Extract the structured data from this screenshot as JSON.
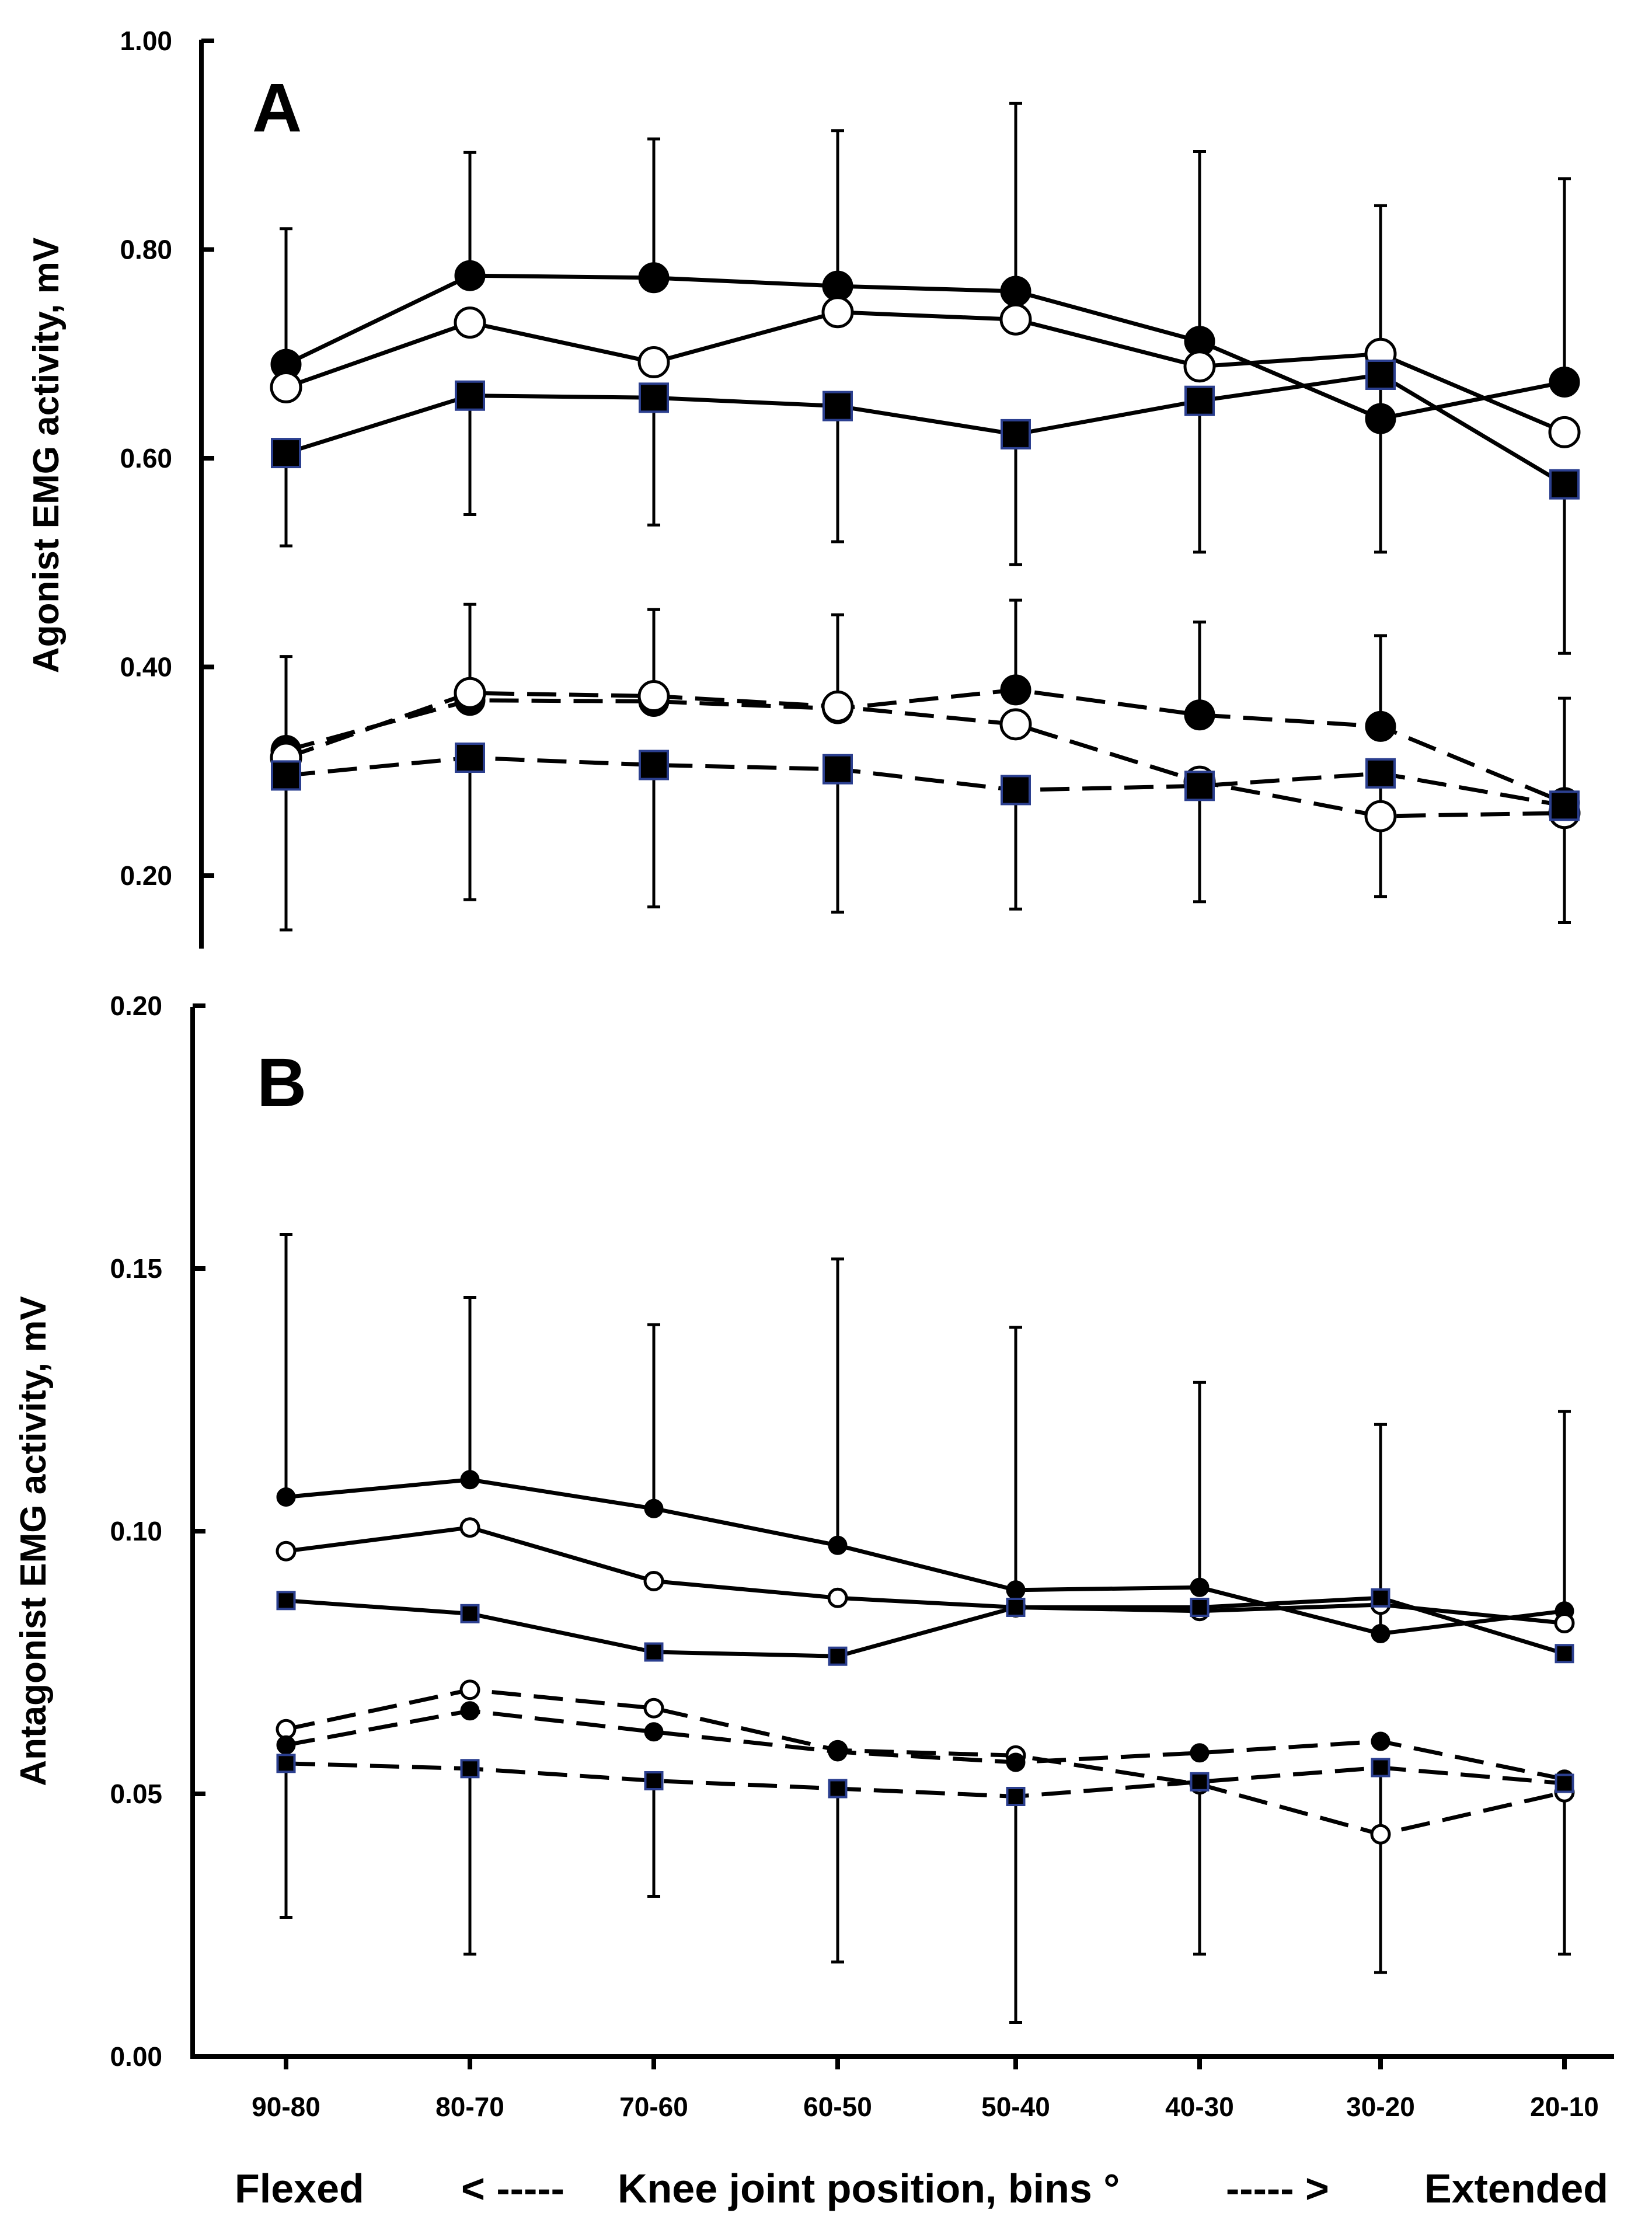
{
  "chart_data": [
    {
      "panel": "A",
      "type": "line",
      "ylabel": "Agonist EMG activity, mV",
      "ylim": [
        0.15,
        1.0
      ],
      "yticks": [
        "1.00",
        "0.80",
        "0.60",
        "0.40",
        "0.20"
      ],
      "categories": [
        "90-80",
        "80-70",
        "70-60",
        "60-50",
        "50-40",
        "40-30",
        "30-20",
        "20-10"
      ],
      "series": [
        {
          "name": "filled-circle-solid",
          "marker": "circle-filled",
          "dash": false,
          "values": [
            0.69,
            0.775,
            0.773,
            0.765,
            0.76,
            0.712,
            0.638,
            0.673
          ],
          "err": [
            0.82,
            0.893,
            0.906,
            0.914,
            0.94,
            0.894,
            0.842,
            0.868
          ]
        },
        {
          "name": "open-circle-solid",
          "marker": "circle-open",
          "dash": false,
          "values": [
            0.668,
            0.73,
            0.692,
            0.74,
            0.733,
            0.688,
            0.7,
            0.625
          ],
          "err": null
        },
        {
          "name": "filled-square-solid",
          "marker": "square-filled",
          "dash": false,
          "values": [
            0.605,
            0.66,
            0.658,
            0.65,
            0.623,
            0.655,
            0.68,
            0.575
          ],
          "err": [
            0.516,
            0.546,
            0.536,
            0.52,
            0.498,
            0.51,
            0.51,
            0.413
          ]
        },
        {
          "name": "filled-circle-dashed",
          "marker": "circle-filled",
          "dash": true,
          "values": [
            0.32,
            0.368,
            0.367,
            0.36,
            0.378,
            0.354,
            0.343,
            0.27
          ],
          "err": [
            0.41,
            0.46,
            0.455,
            0.45,
            0.464,
            0.443,
            0.43,
            0.37
          ]
        },
        {
          "name": "open-circle-dashed",
          "marker": "circle-open",
          "dash": true,
          "values": [
            0.313,
            0.375,
            0.372,
            0.362,
            0.345,
            0.29,
            0.257,
            0.26
          ],
          "err": null
        },
        {
          "name": "filled-square-dashed",
          "marker": "square-filled",
          "dash": true,
          "values": [
            0.296,
            0.313,
            0.306,
            0.302,
            0.282,
            0.286,
            0.298,
            0.267
          ],
          "err": [
            0.148,
            0.177,
            0.17,
            0.165,
            0.168,
            0.175,
            0.18,
            0.155
          ]
        }
      ]
    },
    {
      "panel": "B",
      "type": "line",
      "ylabel": "Antagonist EMG activity, mV",
      "ylim": [
        0.0,
        0.2
      ],
      "yticks": [
        "0.20",
        "0.15",
        "0.10",
        "0.05",
        "0.00"
      ],
      "categories": [
        "90-80",
        "80-70",
        "70-60",
        "60-50",
        "50-40",
        "40-30",
        "30-20",
        "20-10"
      ],
      "series": [
        {
          "name": "filled-circle-solid",
          "marker": "circle-filled",
          "dash": false,
          "values": [
            0.1065,
            0.1098,
            0.1043,
            0.0973,
            0.0888,
            0.0893,
            0.0805,
            0.0848
          ],
          "err": [
            0.1565,
            0.1445,
            0.1393,
            0.1518,
            0.1388,
            0.1283,
            0.1203,
            0.1228
          ]
        },
        {
          "name": "open-circle-solid",
          "marker": "circle-open",
          "dash": false,
          "values": [
            0.0962,
            0.1007,
            0.0905,
            0.0873,
            0.0855,
            0.0848,
            0.086,
            0.0825
          ],
          "err": null
        },
        {
          "name": "filled-square-solid",
          "marker": "square-filled",
          "dash": false,
          "values": [
            0.0868,
            0.0843,
            0.077,
            0.0762,
            0.0855,
            0.0855,
            0.0873,
            0.0767
          ],
          "err": null
        },
        {
          "name": "open-circle-dashed",
          "marker": "circle-open",
          "dash": true,
          "values": [
            0.0623,
            0.0698,
            0.0663,
            0.0583,
            0.0573,
            0.0518,
            0.0423,
            0.0503
          ],
          "err": null
        },
        {
          "name": "filled-circle-dashed",
          "marker": "circle-filled",
          "dash": true,
          "values": [
            0.0593,
            0.0658,
            0.0618,
            0.058,
            0.056,
            0.0578,
            0.06,
            0.0528
          ],
          "err": null
        },
        {
          "name": "filled-square-dashed",
          "marker": "square-filled",
          "dash": true,
          "values": [
            0.0558,
            0.0548,
            0.0525,
            0.051,
            0.0495,
            0.0523,
            0.055,
            0.052
          ],
          "err": [
            0.0265,
            0.0195,
            0.0305,
            0.018,
            0.0065,
            0.0195,
            0.016,
            0.0195
          ]
        }
      ]
    }
  ],
  "footer": {
    "left": "Flexed",
    "arrow_left": "< -----",
    "label": "Knee joint position, bins °",
    "arrow_right": "----- >",
    "right": "Extended"
  }
}
